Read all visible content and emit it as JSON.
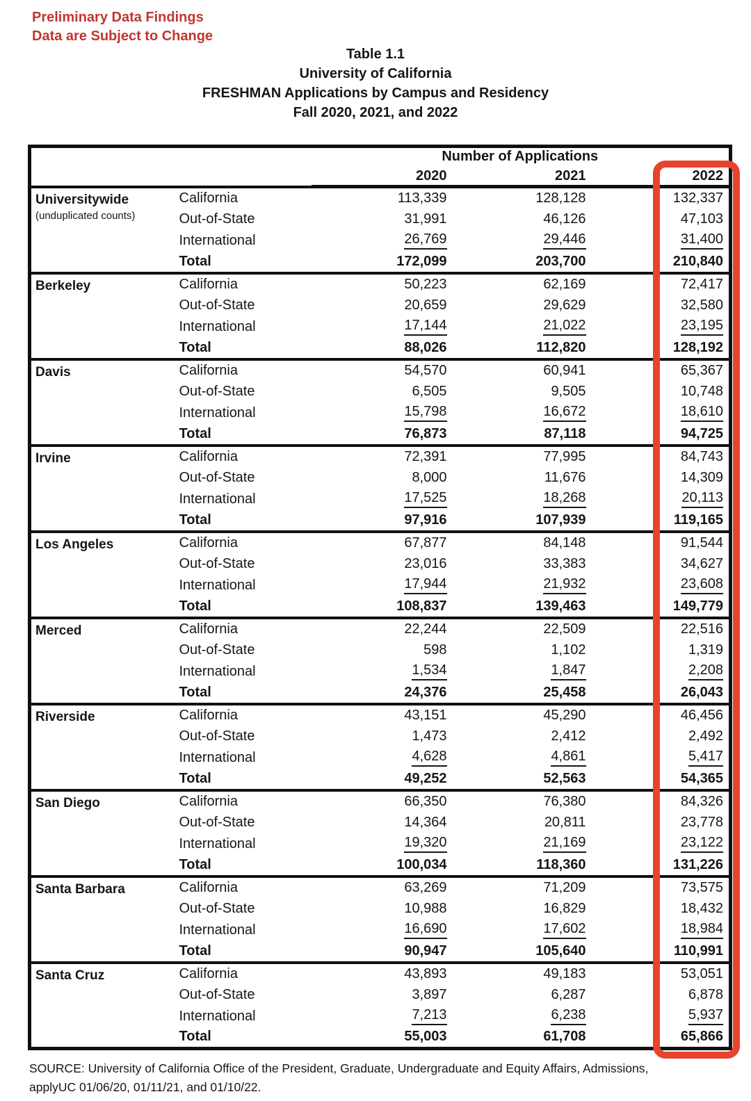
{
  "warning": {
    "line1": "Preliminary Data Findings",
    "line2": "Data are Subject to Change"
  },
  "title": {
    "line1": "Table 1.1",
    "line2": "University of California",
    "line3": "FRESHMAN Applications by Campus and Residency",
    "line4": "Fall 2020, 2021, and 2022"
  },
  "table": {
    "group_header": "Number of Applications",
    "years": [
      "2020",
      "2021",
      "2022"
    ],
    "residency_labels": [
      "California",
      "Out-of-State",
      "International",
      "Total"
    ],
    "highlight": {
      "column": "2022",
      "color": "#e8432c"
    },
    "groups": [
      {
        "campus": "Universitywide",
        "note": "(unduplicated counts)",
        "rows": [
          [
            "113,339",
            "128,128",
            "132,337"
          ],
          [
            "31,991",
            "46,126",
            "47,103"
          ],
          [
            "26,769",
            "29,446",
            "31,400"
          ],
          [
            "172,099",
            "203,700",
            "210,840"
          ]
        ]
      },
      {
        "campus": "Berkeley",
        "note": "",
        "rows": [
          [
            "50,223",
            "62,169",
            "72,417"
          ],
          [
            "20,659",
            "29,629",
            "32,580"
          ],
          [
            "17,144",
            "21,022",
            "23,195"
          ],
          [
            "88,026",
            "112,820",
            "128,192"
          ]
        ]
      },
      {
        "campus": "Davis",
        "note": "",
        "rows": [
          [
            "54,570",
            "60,941",
            "65,367"
          ],
          [
            "6,505",
            "9,505",
            "10,748"
          ],
          [
            "15,798",
            "16,672",
            "18,610"
          ],
          [
            "76,873",
            "87,118",
            "94,725"
          ]
        ]
      },
      {
        "campus": "Irvine",
        "note": "",
        "rows": [
          [
            "72,391",
            "77,995",
            "84,743"
          ],
          [
            "8,000",
            "11,676",
            "14,309"
          ],
          [
            "17,525",
            "18,268",
            "20,113"
          ],
          [
            "97,916",
            "107,939",
            "119,165"
          ]
        ]
      },
      {
        "campus": "Los Angeles",
        "note": "",
        "rows": [
          [
            "67,877",
            "84,148",
            "91,544"
          ],
          [
            "23,016",
            "33,383",
            "34,627"
          ],
          [
            "17,944",
            "21,932",
            "23,608"
          ],
          [
            "108,837",
            "139,463",
            "149,779"
          ]
        ]
      },
      {
        "campus": "Merced",
        "note": "",
        "rows": [
          [
            "22,244",
            "22,509",
            "22,516"
          ],
          [
            "598",
            "1,102",
            "1,319"
          ],
          [
            "1,534",
            "1,847",
            "2,208"
          ],
          [
            "24,376",
            "25,458",
            "26,043"
          ]
        ]
      },
      {
        "campus": "Riverside",
        "note": "",
        "rows": [
          [
            "43,151",
            "45,290",
            "46,456"
          ],
          [
            "1,473",
            "2,412",
            "2,492"
          ],
          [
            "4,628",
            "4,861",
            "5,417"
          ],
          [
            "49,252",
            "52,563",
            "54,365"
          ]
        ]
      },
      {
        "campus": "San Diego",
        "note": "",
        "rows": [
          [
            "66,350",
            "76,380",
            "84,326"
          ],
          [
            "14,364",
            "20,811",
            "23,778"
          ],
          [
            "19,320",
            "21,169",
            "23,122"
          ],
          [
            "100,034",
            "118,360",
            "131,226"
          ]
        ]
      },
      {
        "campus": "Santa Barbara",
        "note": "",
        "rows": [
          [
            "63,269",
            "71,209",
            "73,575"
          ],
          [
            "10,988",
            "16,829",
            "18,432"
          ],
          [
            "16,690",
            "17,602",
            "18,984"
          ],
          [
            "90,947",
            "105,640",
            "110,991"
          ]
        ]
      },
      {
        "campus": "Santa Cruz",
        "note": "",
        "rows": [
          [
            "43,893",
            "49,183",
            "53,051"
          ],
          [
            "3,897",
            "6,287",
            "6,878"
          ],
          [
            "7,213",
            "6,238",
            "5,937"
          ],
          [
            "55,003",
            "61,708",
            "65,866"
          ]
        ]
      }
    ]
  },
  "source": {
    "line1": "SOURCE: University of California Office of the President, Graduate, Undergraduate and Equity Affairs, Admissions,",
    "line2": "applyUC 01/06/20, 01/11/21, and 01/10/22."
  },
  "colors": {
    "warning_red": "#c0362f",
    "highlight_red": "#e8432c",
    "text": "#161616",
    "border": "#101010"
  }
}
